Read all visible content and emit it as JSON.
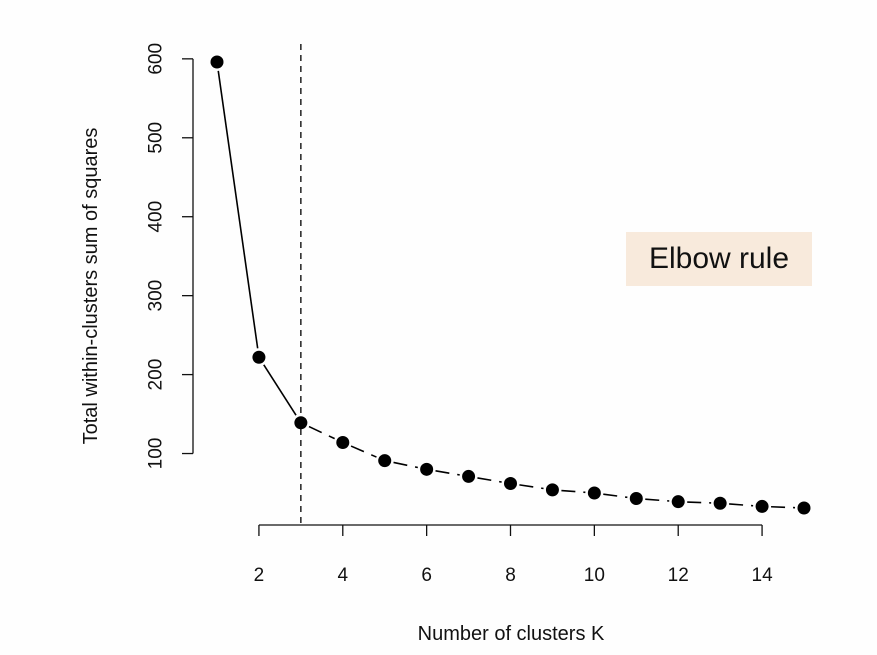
{
  "chart_data": {
    "type": "line",
    "title": "",
    "xlabel": "Number of clusters K",
    "ylabel": "Total within-clusters sum of squares",
    "x": [
      1,
      2,
      3,
      4,
      5,
      6,
      7,
      8,
      9,
      10,
      11,
      12,
      13,
      14,
      15
    ],
    "values": [
      596,
      222,
      139,
      114,
      91,
      80,
      71,
      62,
      54,
      50,
      43,
      39,
      37,
      33,
      31
    ],
    "xlim": [
      1,
      15
    ],
    "ylim": [
      31,
      596
    ],
    "x_ticks": [
      2,
      4,
      6,
      8,
      10,
      12,
      14
    ],
    "y_ticks": [
      100,
      200,
      300,
      400,
      500,
      600
    ],
    "x_tick_labels": [
      "2",
      "4",
      "6",
      "8",
      "10",
      "12",
      "14"
    ],
    "y_tick_labels": [
      "100",
      "200",
      "300",
      "400",
      "500",
      "600"
    ],
    "grid": false,
    "elbow_k": 3,
    "annotation": "Elbow rule",
    "annotation_color": "#f8eadc",
    "line_color": "#000000"
  }
}
